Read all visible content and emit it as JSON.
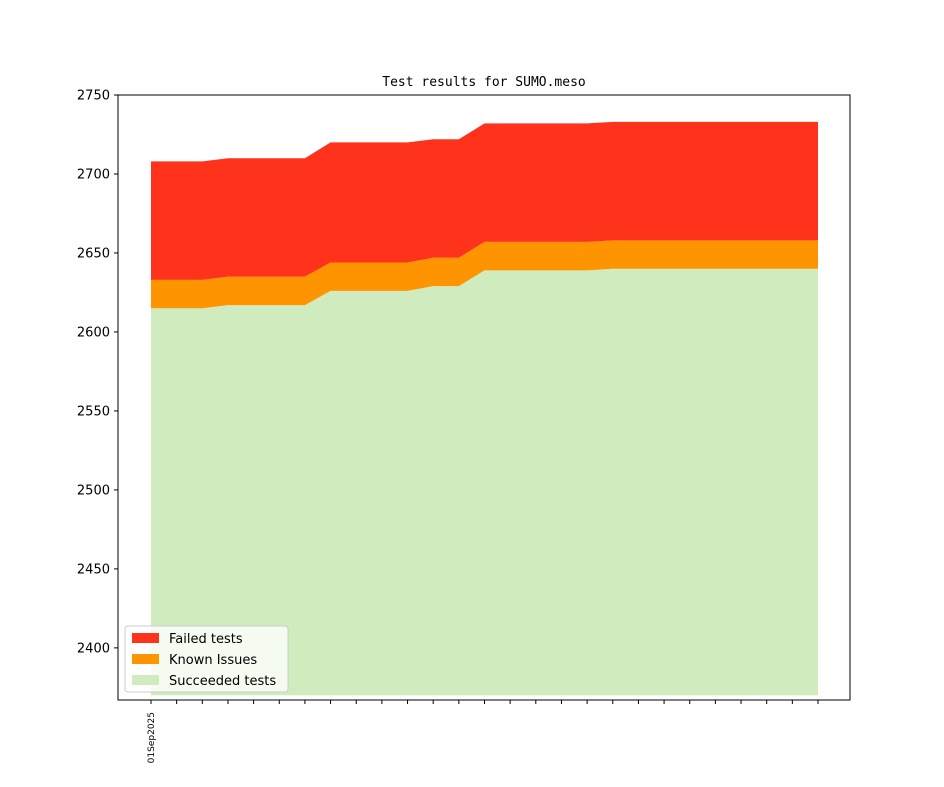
{
  "chart_data": {
    "type": "area",
    "title": "Test results for SUMO.meso",
    "xlabel": "",
    "ylabel": "",
    "ylim": [
      2367,
      2750
    ],
    "yticks": [
      2400,
      2450,
      2500,
      2550,
      2600,
      2650,
      2700,
      2750
    ],
    "x_points": 27,
    "xtick_labels": [
      {
        "index": 0,
        "label": "01Sep2025"
      }
    ],
    "baseline": 2370,
    "series": [
      {
        "name": "Succeeded tests",
        "color": "#d0ecbe",
        "values": [
          2615,
          2615,
          2615,
          2617,
          2617,
          2617,
          2617,
          2626,
          2626,
          2626,
          2626,
          2629,
          2629,
          2639,
          2639,
          2639,
          2639,
          2639,
          2640,
          2640,
          2640,
          2640,
          2640,
          2640,
          2640,
          2640,
          2640
        ]
      },
      {
        "name": "Known Issues",
        "color": "#fd9400",
        "values": [
          2633,
          2633,
          2633,
          2635,
          2635,
          2635,
          2635,
          2644,
          2644,
          2644,
          2644,
          2647,
          2647,
          2657,
          2657,
          2657,
          2657,
          2657,
          2658,
          2658,
          2658,
          2658,
          2658,
          2658,
          2658,
          2658,
          2658
        ]
      },
      {
        "name": "Failed tests",
        "color": "#ff331c",
        "values": [
          2708,
          2708,
          2708,
          2710,
          2710,
          2710,
          2710,
          2720,
          2720,
          2720,
          2720,
          2722,
          2722,
          2732,
          2732,
          2732,
          2732,
          2732,
          2733,
          2733,
          2733,
          2733,
          2733,
          2733,
          2733,
          2733,
          2733
        ]
      }
    ],
    "legend": {
      "placement": "lower-left",
      "entries": [
        "Failed tests",
        "Known Issues",
        "Succeeded tests"
      ]
    },
    "grid": false
  }
}
